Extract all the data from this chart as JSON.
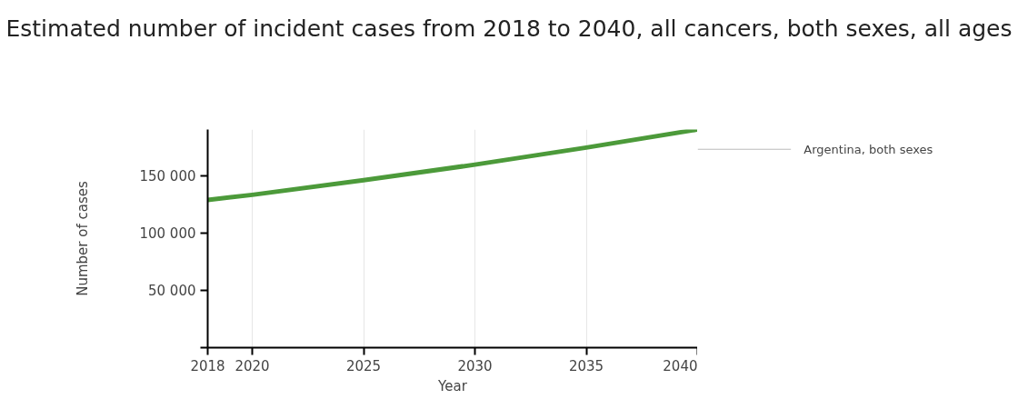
{
  "chart_data": {
    "type": "line",
    "title": "Estimated number of incident cases from 2018 to 2040, all cancers, both sexes, all ages",
    "xlabel": "Year",
    "ylabel": "Number of cases",
    "x": [
      2018,
      2020,
      2025,
      2030,
      2035,
      2040
    ],
    "series": [
      {
        "name": "Argentina, both sexes",
        "color": "#4c9a3a",
        "values": [
          129100,
          133600,
          146400,
          160000,
          174900,
          190700
        ]
      }
    ],
    "xlim": [
      2018,
      2040
    ],
    "xticks": [
      2018,
      2020,
      2025,
      2030,
      2035,
      2040
    ],
    "ylim": [
      0,
      190700
    ],
    "yticks": [
      {
        "value": 0,
        "label": null
      },
      {
        "value": 50000,
        "label": "50 000"
      },
      {
        "value": 100000,
        "label": "100 000"
      },
      {
        "value": 150000,
        "label": "150 000"
      }
    ],
    "grid": "x",
    "legend": false,
    "marker": "none",
    "line_style": "solid"
  }
}
